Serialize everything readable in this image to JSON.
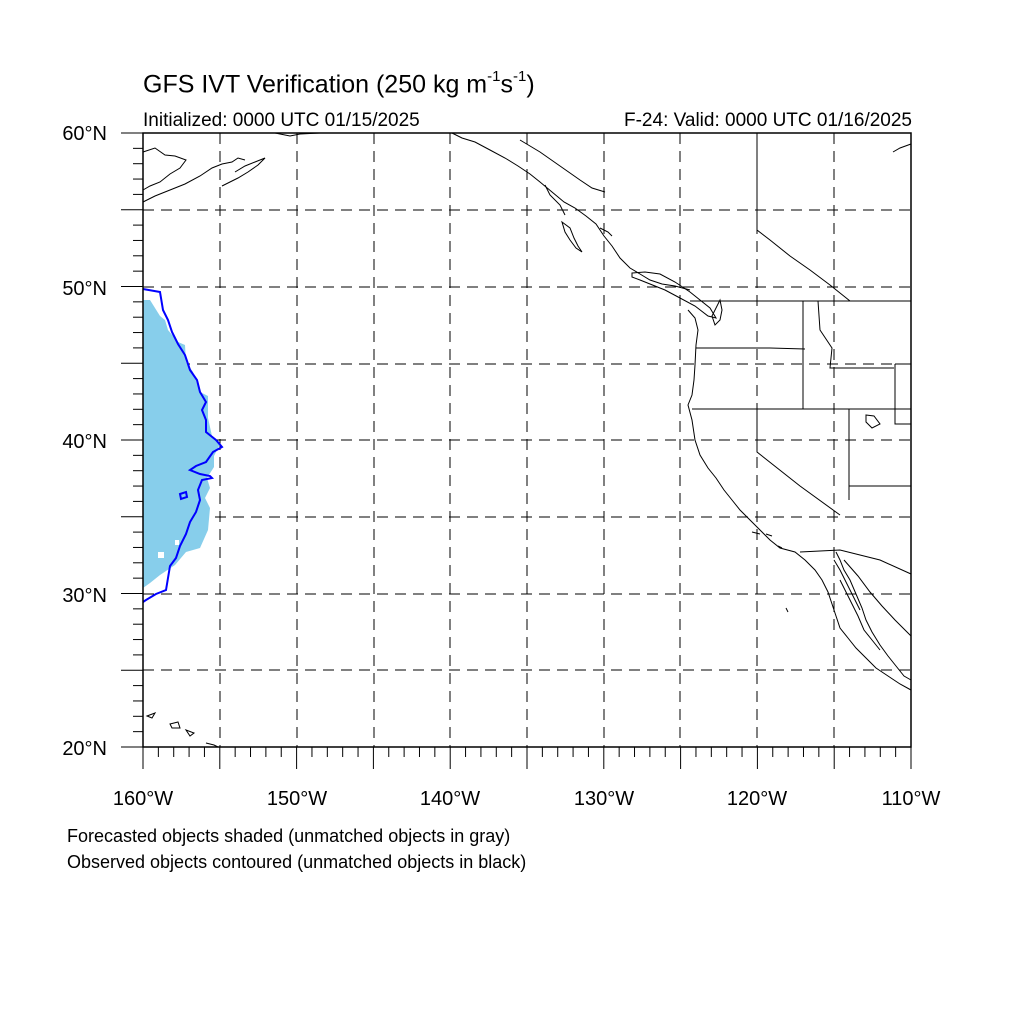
{
  "title": {
    "main": "GFS IVT Verification (250 kg m",
    "exp1": "-1",
    "mid": "s",
    "exp2": "-1",
    "end": ")"
  },
  "initialized": "Initialized: 0000 UTC 01/15/2025",
  "valid": "F-24: Valid: 0000 UTC 01/16/2025",
  "lat_labels": [
    "60°N",
    "50°N",
    "40°N",
    "30°N",
    "20°N"
  ],
  "lon_labels": [
    "160°W",
    "150°W",
    "140°W",
    "130°W",
    "120°W",
    "110°W"
  ],
  "notes": [
    "Forecasted objects shaded (unmatched objects in gray)",
    "Observed objects contoured (unmatched objects in black)"
  ],
  "map": {
    "lat_range": [
      20,
      60
    ],
    "lon_range": [
      -160,
      -110
    ],
    "grid_lines": true,
    "forecast_fill_color": "#87ceeb",
    "observed_contour_color": "#0000ff",
    "coastline_color": "#000000"
  }
}
